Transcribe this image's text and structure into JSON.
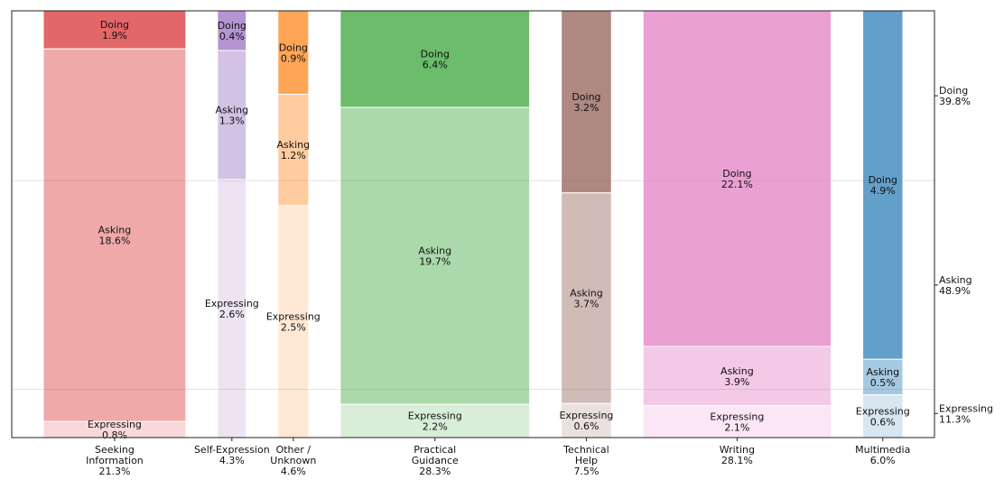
{
  "chart_data": {
    "type": "bar",
    "subtype": "marimekko",
    "title": "",
    "xlabel": "",
    "ylabel": "",
    "ylim": [
      0,
      100
    ],
    "grid": true,
    "categories": [
      {
        "name": "Seeking\nInformation",
        "total": "21.3%",
        "width": 21.3,
        "color": "#d62728",
        "segments": [
          {
            "label": "Doing",
            "value": 1.9,
            "pct": "1.9%"
          },
          {
            "label": "Asking",
            "value": 18.6,
            "pct": "18.6%"
          },
          {
            "label": "Expressing",
            "value": 0.8,
            "pct": "0.8%"
          }
        ]
      },
      {
        "name": "Self-Expression",
        "total": "4.3%",
        "width": 4.3,
        "color": "#9467bd",
        "segments": [
          {
            "label": "Doing",
            "value": 0.4,
            "pct": "0.4%"
          },
          {
            "label": "Asking",
            "value": 1.3,
            "pct": "1.3%"
          },
          {
            "label": "Expressing",
            "value": 2.6,
            "pct": "2.6%"
          }
        ]
      },
      {
        "name": "Other /\nUnknown",
        "total": "4.6%",
        "width": 4.6,
        "color": "#ff7f0e",
        "segments": [
          {
            "label": "Doing",
            "value": 0.9,
            "pct": "0.9%"
          },
          {
            "label": "Asking",
            "value": 1.2,
            "pct": "1.2%"
          },
          {
            "label": "Expressing",
            "value": 2.5,
            "pct": "2.5%"
          }
        ]
      },
      {
        "name": "Practical\nGuidance",
        "total": "28.3%",
        "width": 28.3,
        "color": "#2ca02c",
        "segments": [
          {
            "label": "Doing",
            "value": 6.4,
            "pct": "6.4%"
          },
          {
            "label": "Asking",
            "value": 19.7,
            "pct": "19.7%"
          },
          {
            "label": "Expressing",
            "value": 2.2,
            "pct": "2.2%"
          }
        ]
      },
      {
        "name": "Technical\nHelp",
        "total": "7.5%",
        "width": 7.5,
        "color": "#8c564b",
        "segments": [
          {
            "label": "Doing",
            "value": 3.2,
            "pct": "3.2%"
          },
          {
            "label": "Asking",
            "value": 3.7,
            "pct": "3.7%"
          },
          {
            "label": "Expressing",
            "value": 0.6,
            "pct": "0.6%"
          }
        ]
      },
      {
        "name": "Writing",
        "total": "28.1%",
        "width": 28.1,
        "color": "#e377c2",
        "segments": [
          {
            "label": "Doing",
            "value": 22.1,
            "pct": "22.1%"
          },
          {
            "label": "Asking",
            "value": 3.9,
            "pct": "3.9%"
          },
          {
            "label": "Expressing",
            "value": 2.1,
            "pct": "2.1%"
          }
        ]
      },
      {
        "name": "Multimedia",
        "total": "6.0%",
        "width": 6.0,
        "color": "#1f77b4",
        "segments": [
          {
            "label": "Doing",
            "value": 4.9,
            "pct": "4.9%"
          },
          {
            "label": "Asking",
            "value": 0.5,
            "pct": "0.5%"
          },
          {
            "label": "Expressing",
            "value": 0.6,
            "pct": "0.6%"
          }
        ]
      }
    ],
    "segment_opacity": {
      "Doing": 0.7,
      "Asking": 0.4,
      "Expressing": 0.18
    },
    "overall": [
      {
        "label": "Doing",
        "value": 39.8,
        "pct": "39.8%"
      },
      {
        "label": "Asking",
        "value": 48.9,
        "pct": "48.9%"
      },
      {
        "label": "Expressing",
        "value": 11.3,
        "pct": "11.3%"
      }
    ]
  }
}
